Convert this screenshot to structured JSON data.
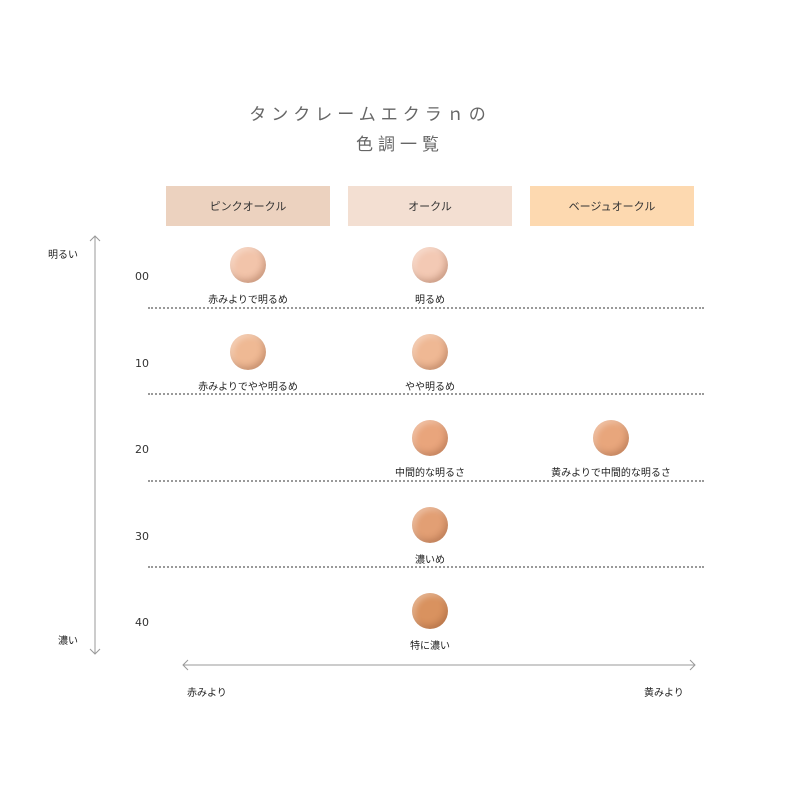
{
  "title": {
    "line1": "タンクレームエクラｎの",
    "line2": "色調一覧"
  },
  "columns": [
    {
      "label": "ピンクオークル",
      "color": "#ecd2bf"
    },
    {
      "label": "オークル",
      "color": "#f3dfd2"
    },
    {
      "label": "ベージュオークル",
      "color": "#fdd9b0"
    }
  ],
  "rows": [
    {
      "label": "00",
      "cells": [
        {
          "caption": "赤みよりで明るめ",
          "color": "#f2c4aa"
        },
        {
          "caption": "明るめ",
          "color": "#f3c9b4"
        },
        null
      ]
    },
    {
      "label": "10",
      "cells": [
        {
          "caption": "赤みよりでやや明るめ",
          "color": "#efb994"
        },
        {
          "caption": "やや明るめ",
          "color": "#efb894"
        },
        null
      ]
    },
    {
      "label": "20",
      "cells": [
        null,
        {
          "caption": "中間的な明るさ",
          "color": "#e9a57c"
        },
        {
          "caption": "黄みよりで中間的な明るさ",
          "color": "#e8a67c"
        }
      ]
    },
    {
      "label": "30",
      "cells": [
        null,
        {
          "caption": "濃いめ",
          "color": "#e29f74"
        },
        null
      ]
    },
    {
      "label": "40",
      "cells": [
        null,
        {
          "caption": "特に濃い",
          "color": "#d9925f"
        },
        null
      ]
    }
  ],
  "axes": {
    "top": "明るい",
    "bottom": "濃い",
    "left": "赤みより",
    "right": "黄みより"
  }
}
